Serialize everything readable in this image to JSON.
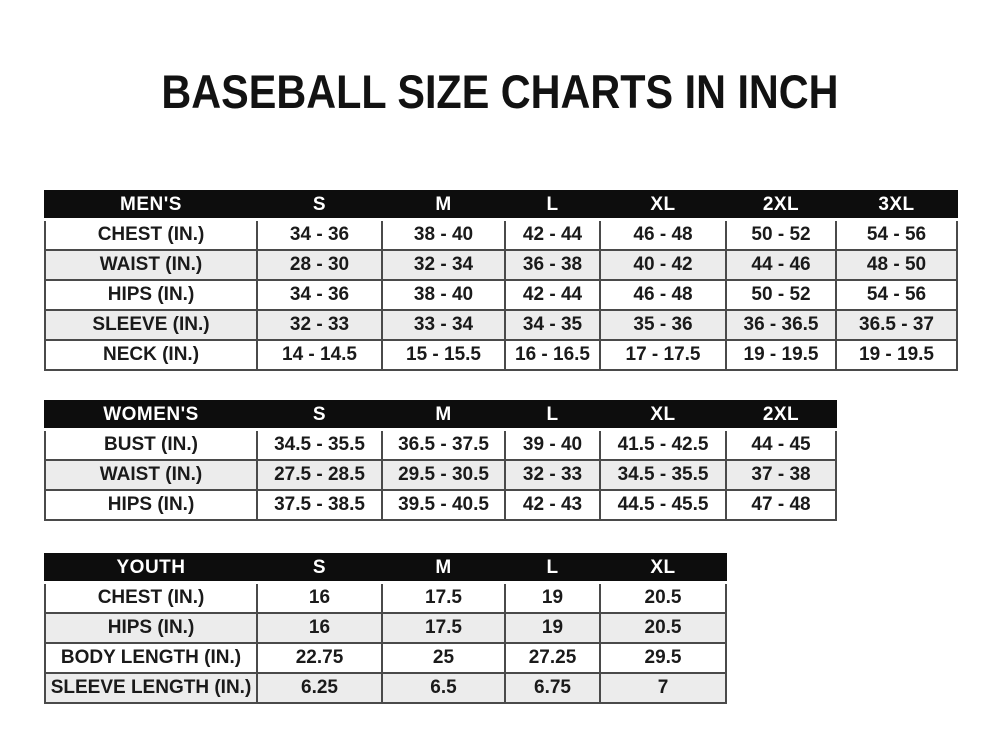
{
  "page": {
    "title": "BASEBALL SIZE CHARTS IN INCH"
  },
  "colors": {
    "header_bg": "#0d0d0d",
    "header_text": "#ffffff",
    "row_bg": "#ffffff",
    "row_alt_bg": "#ececec",
    "border": "#4a4a4a",
    "text": "#1a1a1a"
  },
  "tables": [
    {
      "name": "mens",
      "title": "MEN'S",
      "header": [
        "MEN'S",
        "S",
        "M",
        "L",
        "XL",
        "2XL",
        "3XL"
      ],
      "rows": [
        {
          "label": "CHEST (IN.)",
          "values": [
            "34 - 36",
            "38 - 40",
            "42 - 44",
            "46 - 48",
            "50 - 52",
            "54 - 56"
          ]
        },
        {
          "label": "WAIST (IN.)",
          "values": [
            "28 - 30",
            "32 - 34",
            "36 - 38",
            "40 - 42",
            "44 - 46",
            "48 - 50"
          ]
        },
        {
          "label": "HIPS (IN.)",
          "values": [
            "34 - 36",
            "38 - 40",
            "42 - 44",
            "46 - 48",
            "50 - 52",
            "54 - 56"
          ]
        },
        {
          "label": "SLEEVE (IN.)",
          "values": [
            "32 - 33",
            "33 - 34",
            "34 - 35",
            "35 - 36",
            "36 - 36.5",
            "36.5 - 37"
          ]
        },
        {
          "label": "NECK (IN.)",
          "values": [
            "14 - 14.5",
            "15 - 15.5",
            "16 - 16.5",
            "17 - 17.5",
            "19 - 19.5",
            "19 - 19.5"
          ]
        }
      ]
    },
    {
      "name": "womens",
      "title": "WOMEN'S",
      "header": [
        "WOMEN'S",
        "S",
        "M",
        "L",
        "XL",
        "2XL"
      ],
      "rows": [
        {
          "label": "BUST (IN.)",
          "values": [
            "34.5 - 35.5",
            "36.5 - 37.5",
            "39 - 40",
            "41.5 - 42.5",
            "44 - 45"
          ]
        },
        {
          "label": "WAIST (IN.)",
          "values": [
            "27.5 - 28.5",
            "29.5 - 30.5",
            "32 - 33",
            "34.5 - 35.5",
            "37 - 38"
          ]
        },
        {
          "label": "HIPS (IN.)",
          "values": [
            "37.5 - 38.5",
            "39.5 - 40.5",
            "42 - 43",
            "44.5 - 45.5",
            "47 - 48"
          ]
        }
      ]
    },
    {
      "name": "youth",
      "title": "YOUTH",
      "header": [
        "YOUTH",
        "S",
        "M",
        "L",
        "XL"
      ],
      "rows": [
        {
          "label": "CHEST (IN.)",
          "values": [
            "16",
            "17.5",
            "19",
            "20.5"
          ]
        },
        {
          "label": "HIPS (IN.)",
          "values": [
            "16",
            "17.5",
            "19",
            "20.5"
          ]
        },
        {
          "label": "BODY LENGTH (IN.)",
          "values": [
            "22.75",
            "25",
            "27.25",
            "29.5"
          ]
        },
        {
          "label": "SLEEVE LENGTH (IN.)",
          "values": [
            "6.25",
            "6.5",
            "6.75",
            "7"
          ]
        }
      ]
    }
  ]
}
